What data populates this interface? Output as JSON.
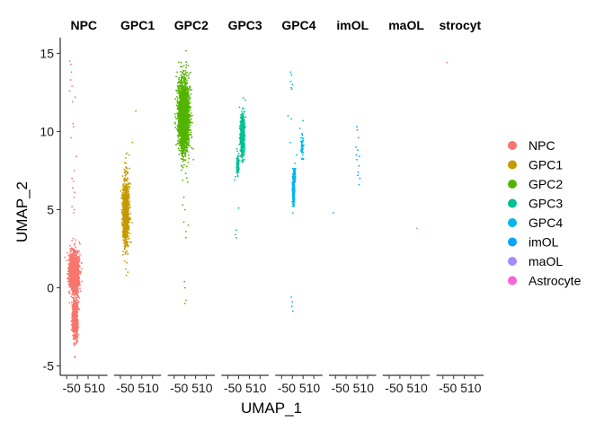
{
  "chart_data": {
    "type": "scatter",
    "title": "",
    "xlabel": "UMAP_1",
    "ylabel": "UMAP_2",
    "facets": [
      "NPC",
      "GPC1",
      "GPC2",
      "GPC3",
      "GPC4",
      "imOL",
      "maOL",
      "Astrocyte"
    ],
    "facet_labels": [
      "NPC",
      "GPC1",
      "GPC2",
      "GPC3",
      "GPC4",
      "imOL",
      "maOL",
      "strocyt"
    ],
    "xlim": [
      -8,
      14
    ],
    "ylim": [
      -5.6,
      16
    ],
    "x_ticks": [
      -5,
      0,
      5,
      10
    ],
    "x_tick_labels": [
      "-5",
      "0",
      "5",
      "10"
    ],
    "x_tick_text": "-50 510",
    "y_ticks": [
      -5,
      0,
      5,
      10,
      15
    ],
    "y_tick_labels": [
      "-5",
      "0",
      "5",
      "10",
      "15"
    ],
    "grid": false,
    "legend_position": "right",
    "series": [
      {
        "name": "NPC",
        "color": "#F8766D",
        "dense": [
          {
            "x": -1.5,
            "y": 1.0,
            "sx": 2.2,
            "sy": 1.3,
            "n": 1500
          },
          {
            "x": -1.0,
            "y": -2.0,
            "sx": 1.2,
            "sy": 1.2,
            "n": 650
          }
        ],
        "points": [
          [
            -3.5,
            14.5
          ],
          [
            -3.0,
            14.3
          ],
          [
            -2.8,
            13.8
          ],
          [
            -3.2,
            13.3
          ],
          [
            -2.5,
            12.9
          ],
          [
            -3.6,
            12.6
          ],
          [
            -1.0,
            12.2
          ],
          [
            -2.2,
            11.9
          ],
          [
            -2.0,
            10.5
          ],
          [
            -1.8,
            10.3
          ],
          [
            -3.0,
            9.6
          ],
          [
            -0.5,
            8.4
          ],
          [
            -1.5,
            7.5
          ],
          [
            -2.5,
            7.0
          ],
          [
            -1.8,
            6.8
          ],
          [
            -2.2,
            6.4
          ],
          [
            -1.2,
            6.1
          ],
          [
            -1.6,
            5.8
          ],
          [
            -1.4,
            5.0
          ],
          [
            -1.8,
            4.8
          ],
          [
            -2.5,
            5.2
          ]
        ]
      },
      {
        "name": "GPC1",
        "color": "#C49A00",
        "dense": [
          {
            "x": -2.5,
            "y": 4.8,
            "sx": 1.5,
            "sy": 2.0,
            "n": 1000
          }
        ],
        "points": [
          [
            2.2,
            11.3
          ],
          [
            0.6,
            9.3
          ],
          [
            -2.0,
            8.6
          ],
          [
            -1.0,
            8.5
          ],
          [
            -2.5,
            8.3
          ],
          [
            -3.0,
            8.0
          ],
          [
            -2.0,
            1.6
          ],
          [
            -2.5,
            1.2
          ],
          [
            -1.5,
            1.0
          ],
          [
            -2.2,
            0.8
          ]
        ]
      },
      {
        "name": "GPC2",
        "color": "#53B400",
        "dense": [
          {
            "x": -0.5,
            "y": 11.0,
            "sx": 2.6,
            "sy": 2.3,
            "n": 2200
          }
        ],
        "points": [
          [
            4.0,
            8.2
          ],
          [
            -1.0,
            5.3
          ],
          [
            0.0,
            5.0
          ],
          [
            -0.5,
            4.2
          ],
          [
            1.5,
            4.0
          ],
          [
            0.5,
            3.6
          ],
          [
            0.5,
            3.2
          ],
          [
            -0.2,
            0.4
          ],
          [
            0.0,
            0.0
          ],
          [
            0.5,
            -0.8
          ],
          [
            0.0,
            -1.0
          ],
          [
            -0.5,
            5.8
          ]
        ]
      },
      {
        "name": "GPC3",
        "color": "#00C094",
        "dense": [
          {
            "x": 1.8,
            "y": 9.8,
            "sx": 0.9,
            "sy": 1.3,
            "n": 700
          },
          {
            "x": -0.5,
            "y": 7.8,
            "sx": 0.6,
            "sy": 0.6,
            "n": 120
          }
        ],
        "points": [
          [
            -1.0,
            3.7
          ],
          [
            -1.5,
            3.4
          ],
          [
            -1.0,
            3.2
          ],
          [
            -1.5,
            7.1
          ],
          [
            -1.8,
            6.9
          ],
          [
            0.0,
            5.1
          ],
          [
            3.2,
            12.0
          ],
          [
            -0.8,
            8.9
          ]
        ]
      },
      {
        "name": "GPC4",
        "color": "#00B6EB",
        "dense": [
          {
            "x": 0.5,
            "y": 6.3,
            "sx": 0.5,
            "sy": 0.9,
            "n": 260
          },
          {
            "x": 1.0,
            "y": 7.2,
            "sx": 0.4,
            "sy": 0.5,
            "n": 70
          },
          {
            "x": 4.5,
            "y": 9.0,
            "sx": 0.6,
            "sy": 0.7,
            "n": 45
          }
        ],
        "points": [
          [
            -0.8,
            13.8
          ],
          [
            -0.4,
            13.6
          ],
          [
            -0.8,
            13.2
          ],
          [
            0.0,
            13.0
          ],
          [
            -0.5,
            12.8
          ],
          [
            -0.2,
            12.7
          ],
          [
            -2.0,
            11.0
          ],
          [
            -0.4,
            10.8
          ],
          [
            5.0,
            10.7
          ],
          [
            3.5,
            10.2
          ],
          [
            4.0,
            9.6
          ],
          [
            -0.5,
            -0.6
          ],
          [
            0.0,
            -0.9
          ],
          [
            -0.3,
            -1.2
          ],
          [
            0.2,
            -1.5
          ],
          [
            -1.0,
            9.3
          ],
          [
            2.0,
            8.5
          ]
        ]
      },
      {
        "name": "imOL",
        "color": "#06A4FF",
        "dense": [],
        "points": [
          [
            -6.0,
            4.8
          ],
          [
            5.0,
            10.3
          ],
          [
            5.2,
            10.1
          ],
          [
            5.8,
            9.6
          ],
          [
            4.6,
            9.0
          ],
          [
            5.4,
            8.8
          ],
          [
            6.2,
            8.4
          ],
          [
            5.0,
            8.2
          ],
          [
            6.0,
            7.8
          ],
          [
            5.6,
            7.4
          ],
          [
            6.4,
            7.0
          ],
          [
            6.0,
            6.6
          ],
          [
            5.4,
            7.2
          ],
          [
            4.8,
            8.5
          ]
        ]
      },
      {
        "name": "maOL",
        "color": "#A58AFF",
        "dense": [],
        "points": [
          [
            8.0,
            3.8
          ]
        ]
      },
      {
        "name": "Astrocyte",
        "color": "#FB61D7",
        "dense": [],
        "points": [
          [
            -3.0,
            14.4
          ]
        ]
      }
    ]
  }
}
